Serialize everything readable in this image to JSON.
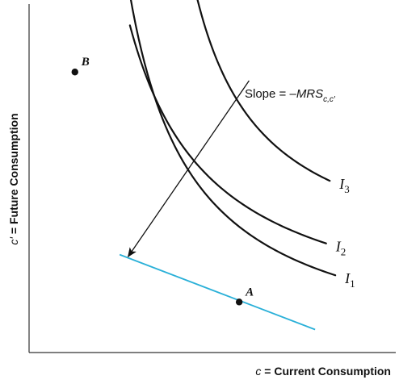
{
  "chart_data": {
    "type": "line",
    "title": "",
    "xlabel": "c = Current Consumption",
    "ylabel": "c′ = Future Consumption",
    "xlabel_parts": {
      "var": "c",
      "rest": " = Current Consumption"
    },
    "ylabel_parts": {
      "var": "c′",
      "rest": " = Future Consumption"
    },
    "xlim": [
      0,
      100
    ],
    "ylim": [
      0,
      100
    ],
    "grid": false,
    "axes_color": "#333333",
    "series": [
      {
        "name": "I1",
        "label_main": "I",
        "label_sub": "1",
        "color": "#111111",
        "k": 1850,
        "x0": 10,
        "y0": -3,
        "x_range": [
          18.5,
          83.5
        ]
      },
      {
        "name": "I2",
        "label_main": "I",
        "label_sub": "2",
        "color": "#111111",
        "k": 2000,
        "x0": 5,
        "y0": 5,
        "x_range": [
          27.5,
          81
        ]
      },
      {
        "name": "I3",
        "label_main": "I",
        "label_sub": "3",
        "color": "#111111",
        "k": 1500,
        "x0": 27,
        "y0": 22,
        "x_range": [
          39,
          82
        ]
      }
    ],
    "tangent": {
      "color": "#2ab0d8",
      "x": [
        24.7,
        78
      ],
      "y": [
        28.1,
        6.6
      ]
    },
    "points": [
      {
        "label": "A",
        "x": 57.3,
        "y": 14.5
      },
      {
        "label": "B",
        "x": 12.5,
        "y": 80.5
      }
    ],
    "annotation": {
      "parts": [
        "Slope = –",
        "MRS",
        "c,c′"
      ],
      "arrow_from": [
        60,
        78
      ],
      "arrow_to": [
        27,
        27.5
      ]
    }
  }
}
